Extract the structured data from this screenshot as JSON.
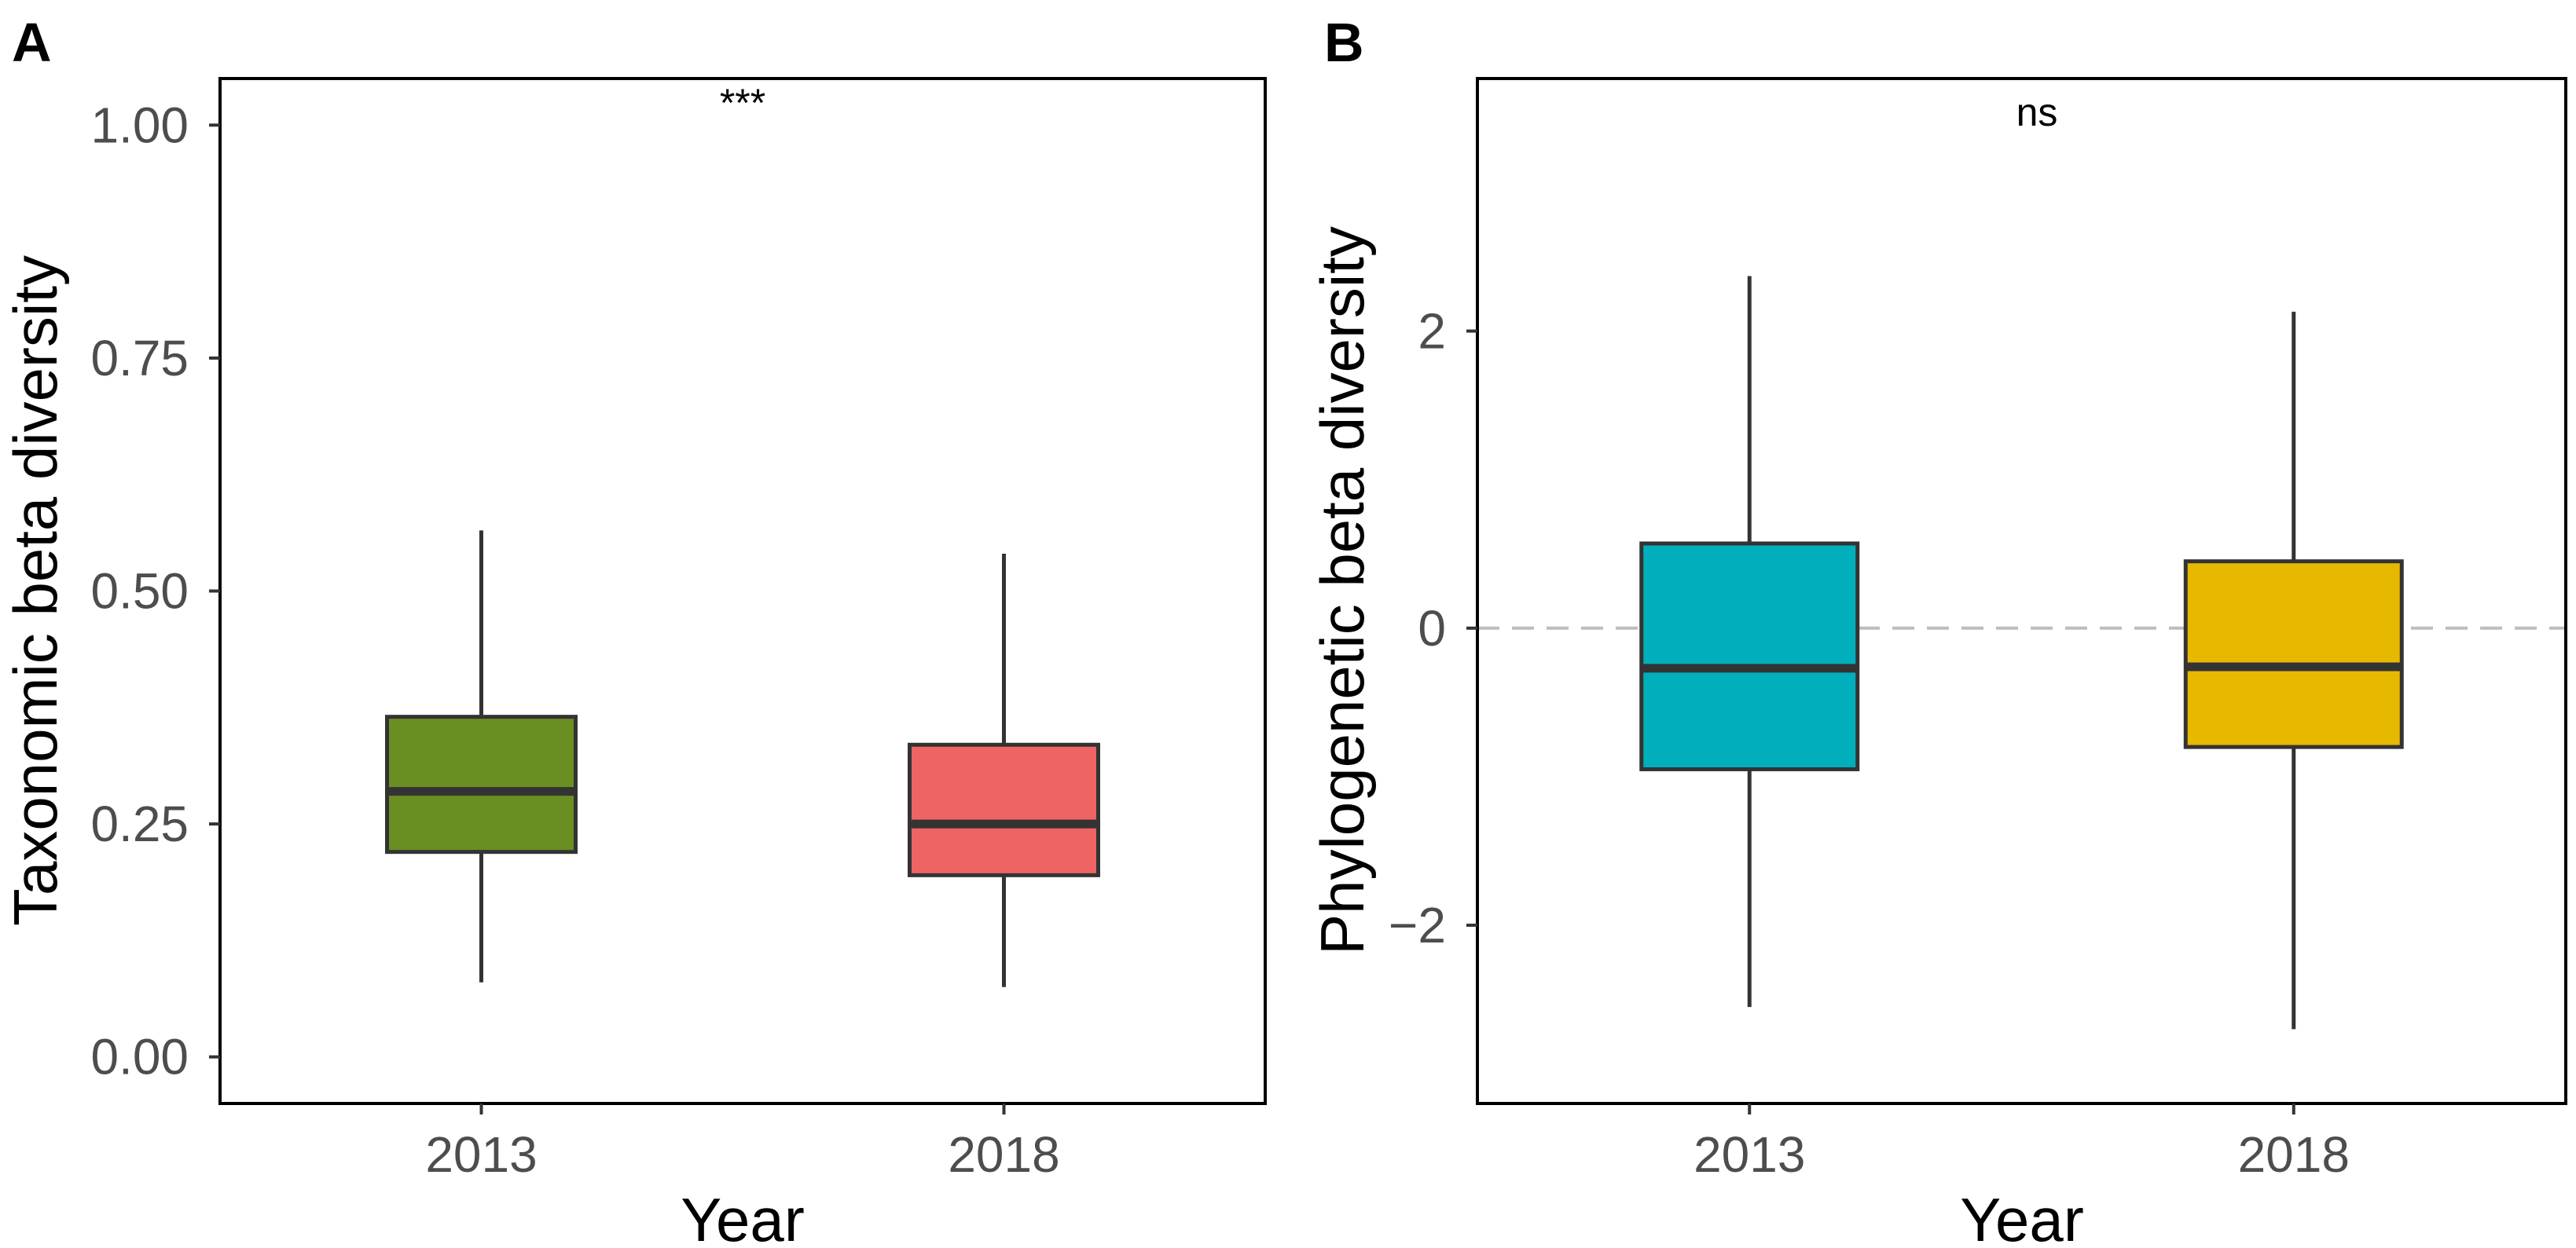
{
  "chart_data": [
    {
      "type": "box",
      "panel_label": "A",
      "title": "",
      "xlabel": "Year",
      "ylabel": "Taxonomic beta diversity",
      "ylim": [
        -0.05,
        1.05
      ],
      "y_ticks": [
        0.0,
        0.25,
        0.5,
        0.75,
        1.0
      ],
      "y_tick_labels": [
        "0.00",
        "0.25",
        "0.50",
        "0.75",
        "1.00"
      ],
      "categories": [
        "2013",
        "2018"
      ],
      "annotation": "***",
      "reference_line": null,
      "boxes": [
        {
          "category": "2013",
          "fill": "#6b8e23",
          "whisker_low": 0.08,
          "q1": 0.22,
          "median": 0.285,
          "q3": 0.365,
          "whisker_high": 0.565
        },
        {
          "category": "2018",
          "fill": "#ee6363",
          "whisker_low": 0.075,
          "q1": 0.195,
          "median": 0.25,
          "q3": 0.335,
          "whisker_high": 0.54
        }
      ]
    },
    {
      "type": "box",
      "panel_label": "B",
      "title": "",
      "xlabel": "Year",
      "ylabel": "Phylogenetic beta diversity",
      "ylim": [
        -3.2,
        3.7
      ],
      "y_ticks": [
        -2,
        0,
        2
      ],
      "y_tick_labels": [
        "−2",
        "0",
        "2"
      ],
      "categories": [
        "2013",
        "2018"
      ],
      "annotation": "ns",
      "reference_line": {
        "y": 0,
        "style": "dashed",
        "color": "#bdbdbd"
      },
      "boxes": [
        {
          "category": "2013",
          "fill": "#00afbb",
          "whisker_low": -2.55,
          "q1": -0.95,
          "median": -0.27,
          "q3": 0.57,
          "whisker_high": 2.37
        },
        {
          "category": "2018",
          "fill": "#e7b800",
          "whisker_low": -2.7,
          "q1": -0.8,
          "median": -0.26,
          "q3": 0.45,
          "whisker_high": 2.13
        }
      ]
    }
  ]
}
